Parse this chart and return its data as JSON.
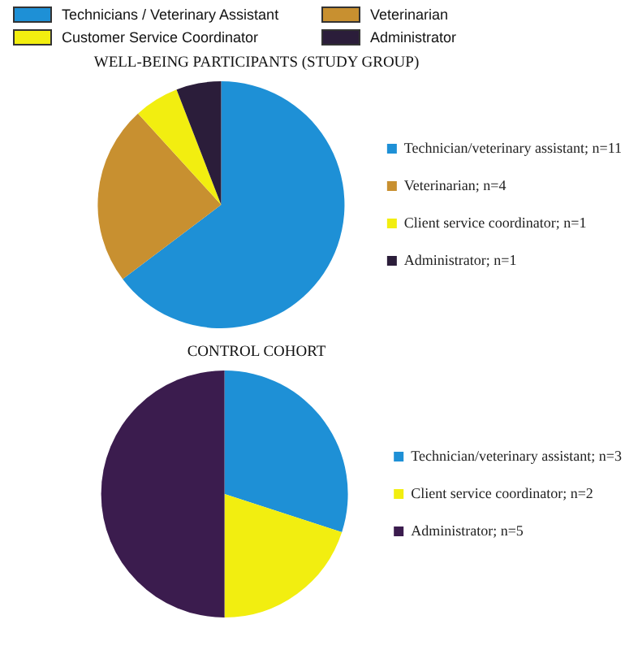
{
  "chart_data": [
    {
      "type": "other",
      "annotations": [
        "Technicians / Veterinary Assistant",
        "Veterinarian",
        "Customer Service Coordinator",
        "Administrator"
      ]
    },
    {
      "type": "pie",
      "title": "WELL-BEING PARTICIPANTS (STUDY GROUP)",
      "categories": [
        "Technician/veterinary assistant; n=11",
        "Veterinarian; n=4",
        "Client service coordinator; n=1",
        "Administrator; n=1"
      ],
      "values": [
        11,
        4,
        1,
        1
      ],
      "colors": [
        "#1e90d6",
        "#c89030",
        "#f2ee10",
        "#2b1d3a"
      ],
      "legend": "right"
    },
    {
      "type": "pie",
      "title": "CONTROL COHORT",
      "categories": [
        "Technician/veterinary assistant; n=3",
        "Client service coordinator; n=2",
        "Administrator; n=5"
      ],
      "values": [
        3,
        2,
        5
      ],
      "colors": [
        "#1e90d6",
        "#f2ee10",
        "#3b1c4e"
      ],
      "legend": "right"
    }
  ]
}
